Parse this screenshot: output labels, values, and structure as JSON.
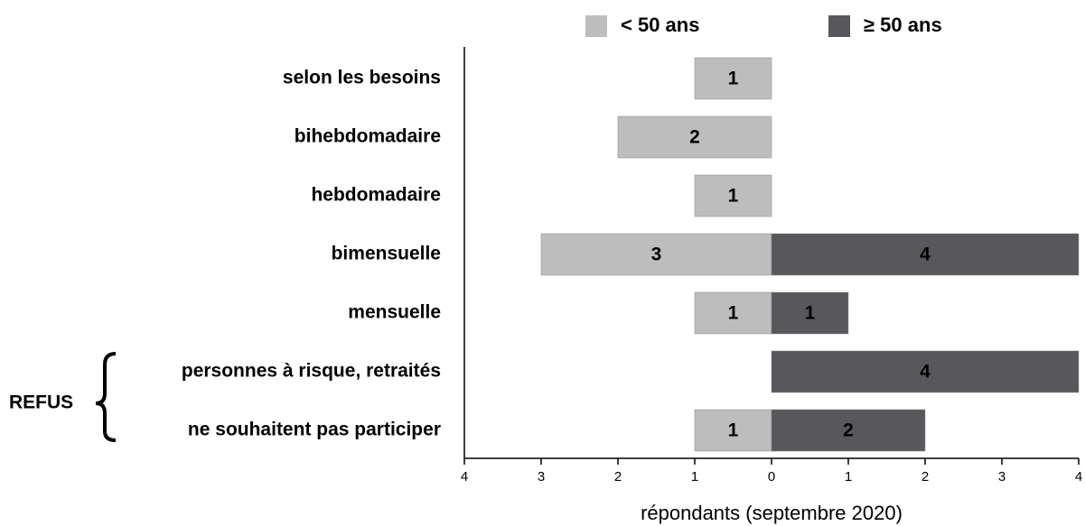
{
  "chart_data": {
    "type": "diverging_bar",
    "categories": [
      "selon les besoins",
      "bihebdomadaire",
      "hebdomadaire",
      "bimensuelle",
      "mensuelle",
      "personnes à risque, retraités",
      "ne souhaitent pas participer"
    ],
    "series": [
      {
        "name": "< 50 ans",
        "color": "#bdbdbd",
        "label_color": "#000000",
        "values": [
          1,
          2,
          1,
          3,
          1,
          null,
          1
        ]
      },
      {
        "name": "≥ 50 ans",
        "color": "#58585c",
        "label_color": "#ffffff",
        "values": [
          null,
          null,
          null,
          4,
          1,
          4,
          2
        ]
      }
    ],
    "xlim": [
      -4,
      4
    ],
    "xticks": [
      {
        "value": -4,
        "label": "4"
      },
      {
        "value": -3,
        "label": "3"
      },
      {
        "value": -2,
        "label": "2"
      },
      {
        "value": -1,
        "label": "1"
      },
      0,
      1,
      2,
      3,
      4
    ],
    "xlabel": "répondants (septembre 2020)",
    "annotations": [
      "REFUS"
    ]
  }
}
